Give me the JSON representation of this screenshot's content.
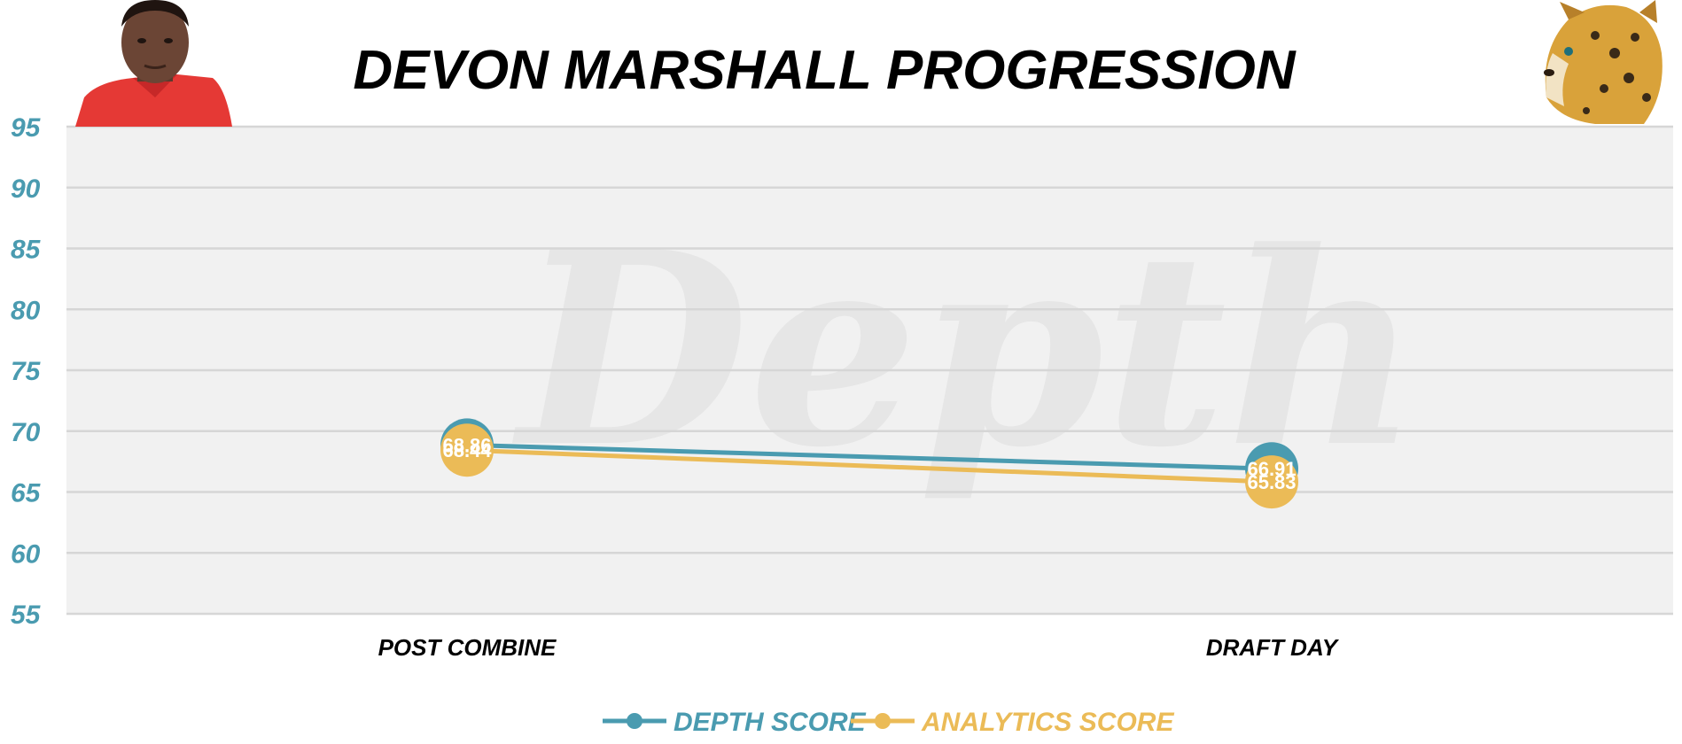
{
  "chart_data": {
    "type": "line",
    "title": "DEVON MARSHALL PROGRESSION",
    "categories": [
      "POST COMBINE",
      "DRAFT DAY"
    ],
    "series": [
      {
        "name": "DEPTH SCORE",
        "values": [
          68.86,
          66.91
        ],
        "color": "#4a9bb0"
      },
      {
        "name": "ANALYTICS SCORE",
        "values": [
          68.44,
          65.83
        ],
        "color": "#ebbb57"
      }
    ],
    "ylim": [
      55,
      95
    ],
    "yticks": [
      95,
      90,
      85,
      80,
      75,
      70,
      65,
      60,
      55
    ],
    "xlabel": "",
    "ylabel": "",
    "grid": true,
    "legend": "bottom-center",
    "watermark": "Depth",
    "colors": {
      "plot_background": "#f1f1f1",
      "gridline": "#d6d6d6",
      "ytick": "#4a9bb0",
      "jersey": "#e53935"
    },
    "images": {
      "player_photo": "player-headshot",
      "team_logo": "jaguar-logo"
    }
  }
}
